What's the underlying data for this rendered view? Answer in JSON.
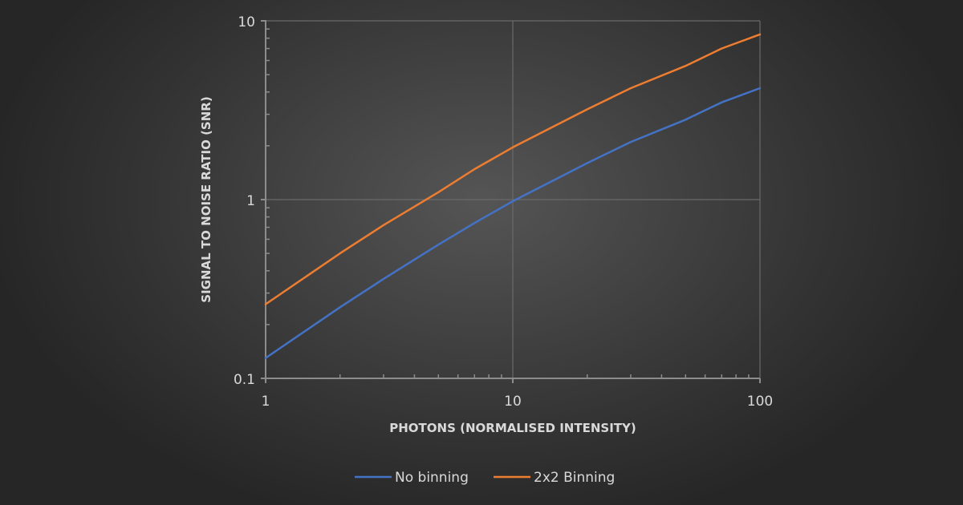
{
  "chart_data": {
    "type": "line",
    "title": "",
    "xlabel": "PHOTONS (NORMALISED INTENSITY)",
    "ylabel": "SIGNAL TO NOISE RATIO (SNR)",
    "xscale": "log",
    "yscale": "log",
    "xlim": [
      1,
      100
    ],
    "ylim": [
      0.1,
      10
    ],
    "xticks": [
      "1",
      "10",
      "100"
    ],
    "yticks": [
      "0.1",
      "1",
      "10"
    ],
    "grid": true,
    "legend_position": "bottom",
    "x": [
      1,
      2,
      3,
      5,
      7,
      10,
      20,
      30,
      50,
      70,
      100
    ],
    "series": [
      {
        "name": "No binning",
        "color": "#4472C4",
        "values": [
          0.13,
          0.25,
          0.36,
          0.56,
          0.74,
          0.98,
          1.6,
          2.1,
          2.8,
          3.5,
          4.2
        ]
      },
      {
        "name": "2x2 Binning",
        "color": "#ED7D31",
        "values": [
          0.26,
          0.5,
          0.72,
          1.1,
          1.48,
          1.96,
          3.2,
          4.2,
          5.6,
          7.0,
          8.4
        ]
      }
    ]
  },
  "legend": {
    "items": [
      {
        "label": "No binning",
        "color": "#4472C4"
      },
      {
        "label": "2x2 Binning",
        "color": "#ED7D31"
      }
    ]
  },
  "axes": {
    "x_title": "PHOTONS (NORMALISED INTENSITY)",
    "y_title": "SIGNAL TO NOISE RATIO (SNR)",
    "x_ticks": [
      "1",
      "10",
      "100"
    ],
    "y_ticks": [
      "0.1",
      "1",
      "10"
    ]
  }
}
